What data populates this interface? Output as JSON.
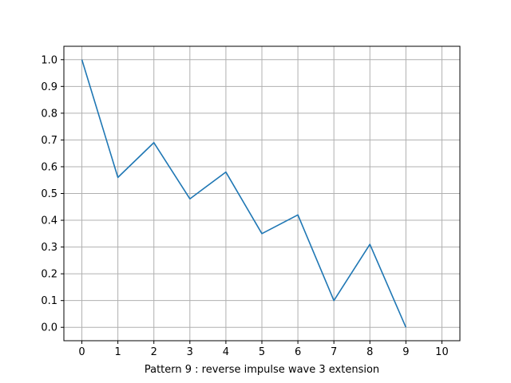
{
  "chart_data": {
    "type": "line",
    "title": "",
    "xlabel": "Pattern 9 :  reverse impulse wave 3 extension",
    "ylabel": "",
    "xlim": [
      -0.5,
      10.5
    ],
    "ylim": [
      -0.05,
      1.05
    ],
    "grid": true,
    "x_ticks": [
      0,
      1,
      2,
      3,
      4,
      5,
      6,
      7,
      8,
      9,
      10
    ],
    "x_tick_labels": [
      "0",
      "1",
      "2",
      "3",
      "4",
      "5",
      "6",
      "7",
      "8",
      "9",
      "10"
    ],
    "y_ticks": [
      0.0,
      0.1,
      0.2,
      0.3,
      0.4,
      0.5,
      0.6,
      0.7,
      0.8,
      0.9,
      1.0
    ],
    "y_tick_labels": [
      "0.0",
      "0.1",
      "0.2",
      "0.3",
      "0.4",
      "0.5",
      "0.6",
      "0.7",
      "0.8",
      "0.9",
      "1.0"
    ],
    "series": [
      {
        "color": "#1f77b4",
        "x": [
          0,
          1,
          2,
          3,
          4,
          5,
          6,
          7,
          8,
          9
        ],
        "y": [
          1.0,
          0.56,
          0.69,
          0.48,
          0.58,
          0.35,
          0.42,
          0.1,
          0.31,
          0.0
        ]
      }
    ]
  }
}
